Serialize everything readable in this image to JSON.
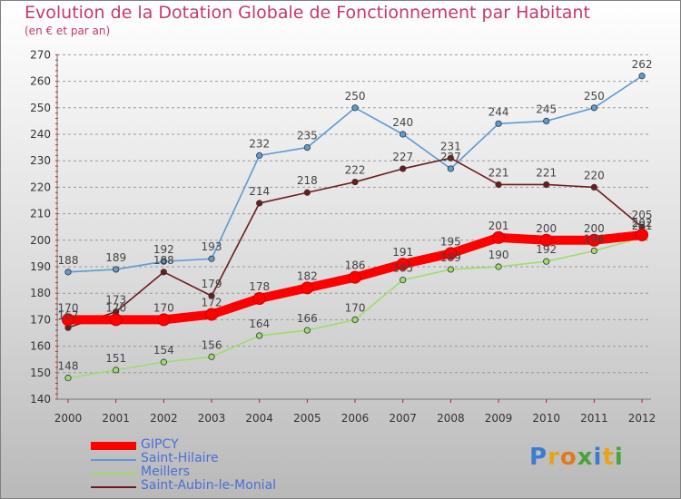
{
  "header": {
    "title": "Evolution de la Dotation Globale de Fonctionnement par Habitant",
    "subtitle": "(en € et par an)"
  },
  "brand": {
    "logo_text": "Proxiti"
  },
  "chart_data": {
    "type": "line",
    "title": "Evolution de la Dotation Globale de Fonctionnement par Habitant",
    "subtitle": "(en € et par an)",
    "xlabel": "",
    "ylabel": "",
    "categories": [
      "2000",
      "2001",
      "2002",
      "2003",
      "2004",
      "2005",
      "2006",
      "2007",
      "2008",
      "2009",
      "2010",
      "2011",
      "2012"
    ],
    "ylim": [
      140,
      270
    ],
    "yticks": [
      140,
      150,
      160,
      170,
      180,
      190,
      200,
      210,
      220,
      230,
      240,
      250,
      260,
      270
    ],
    "grid": "horizontal dashed",
    "legend_position": "bottom-left",
    "series": [
      {
        "name": "Saint-Hilaire",
        "color": "#5e9bd1",
        "values": [
          188,
          189,
          192,
          193,
          232,
          235,
          250,
          240,
          227,
          244,
          245,
          250,
          262
        ],
        "labels": [
          "188",
          "189",
          "192",
          "193",
          "232",
          "235",
          "250",
          "240",
          "227",
          "244",
          "245",
          "250",
          "262"
        ]
      },
      {
        "name": "Saint-Aubin-le-Monial",
        "color": "#6b1d1d",
        "values": [
          167,
          173,
          188,
          179,
          214,
          218,
          222,
          227,
          231,
          221,
          221,
          220,
          205
        ],
        "labels": [
          "167",
          "173",
          "188",
          "179",
          "214",
          "218",
          "222",
          "227",
          "231",
          "221",
          "221",
          "220",
          "205"
        ]
      },
      {
        "name": "Meillers",
        "color": "#9fdc6e",
        "values": [
          148,
          151,
          154,
          156,
          164,
          166,
          170,
          185,
          189,
          190,
          192,
          196,
          201
        ],
        "labels": [
          "148",
          "151",
          "154",
          "156",
          "164",
          "166",
          "170",
          "185",
          "189",
          "190",
          "192",
          "196",
          "201"
        ]
      },
      {
        "name": "GIPCY",
        "color": "#ff0000",
        "values": [
          170,
          170,
          170,
          172,
          178,
          182,
          186,
          191,
          195,
          201,
          200,
          200,
          202
        ],
        "labels": [
          "170",
          "170",
          "170",
          "172",
          "178",
          "182",
          "186",
          "191",
          "195",
          "201",
          "200",
          "200",
          "202"
        ]
      }
    ],
    "legend": [
      "GIPCY",
      "Saint-Hilaire",
      "Meillers",
      "Saint-Aubin-le-Monial"
    ]
  }
}
